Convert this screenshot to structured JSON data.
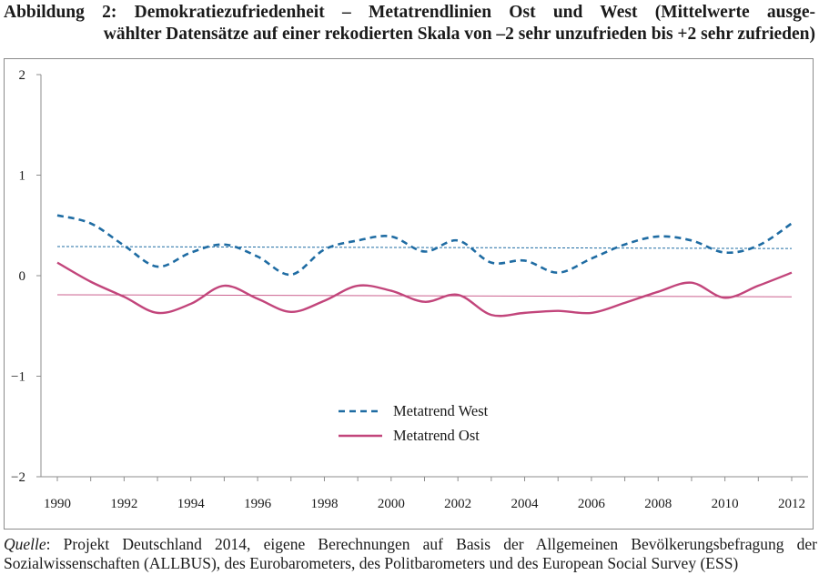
{
  "title": {
    "line1": "Abbildung 2: Demokratiezufriedenheit – Metatrendlinien Ost und West (Mittelwerte ausge-",
    "line2": "wählter Datensätze auf einer rekodierten Skala von –2 sehr unzufrieden bis +2 sehr zufrieden)"
  },
  "source": {
    "label": "Quelle",
    "line1_rest": ": Projekt Deutschland 2014, eigene Berechnungen auf Basis der Allgemeinen Bevölkerungsbefragung der",
    "line2": "Sozialwissenschaften (ALLBUS), des Eurobarometers, des Politbarometers und des European Social Survey (ESS)"
  },
  "chart_data": {
    "type": "line",
    "x": [
      1990,
      1991,
      1992,
      1993,
      1994,
      1995,
      1996,
      1997,
      1998,
      1999,
      2000,
      2001,
      2002,
      2003,
      2004,
      2005,
      2006,
      2007,
      2008,
      2009,
      2010,
      2011,
      2012
    ],
    "x_tick_labels": [
      "1990",
      "1992",
      "1994",
      "1996",
      "1998",
      "2000",
      "2002",
      "2004",
      "2006",
      "2008",
      "2010",
      "2012"
    ],
    "y_tick_labels": [
      "2",
      "1",
      "0",
      "−1",
      "−2"
    ],
    "ylim": [
      -2,
      2
    ],
    "grid": false,
    "legend_position": "center-bottom",
    "series": [
      {
        "name": "Metatrend West",
        "color": "#1f6ca3",
        "style": "dashed",
        "values": [
          0.6,
          0.52,
          0.3,
          0.09,
          0.23,
          0.31,
          0.19,
          0.01,
          0.26,
          0.35,
          0.39,
          0.24,
          0.35,
          0.13,
          0.15,
          0.03,
          0.17,
          0.31,
          0.39,
          0.35,
          0.23,
          0.3,
          0.52
        ],
        "trend": [
          0.29,
          0.27
        ]
      },
      {
        "name": "Metatrend Ost",
        "color": "#c2457b",
        "style": "solid",
        "values": [
          0.13,
          -0.06,
          -0.21,
          -0.37,
          -0.28,
          -0.1,
          -0.23,
          -0.36,
          -0.25,
          -0.1,
          -0.15,
          -0.26,
          -0.19,
          -0.39,
          -0.37,
          -0.35,
          -0.37,
          -0.27,
          -0.16,
          -0.07,
          -0.22,
          -0.1,
          0.03
        ],
        "trend": [
          -0.19,
          -0.21
        ]
      }
    ]
  }
}
